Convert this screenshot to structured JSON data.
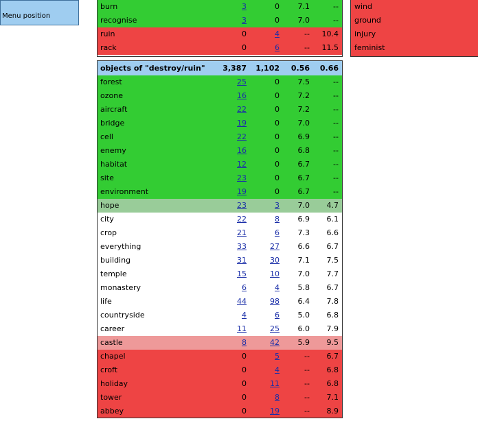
{
  "menu": {
    "label": "Menu position"
  },
  "top_rows": [
    {
      "word": "burn",
      "f1": "3",
      "f2": "0",
      "s1": "7.1",
      "s2": "--",
      "cls": "g",
      "f1_link": true,
      "f2_link": false
    },
    {
      "word": "recognise",
      "f1": "3",
      "f2": "0",
      "s1": "7.0",
      "s2": "--",
      "cls": "g",
      "f1_link": true,
      "f2_link": false
    },
    {
      "word": "ruin",
      "f1": "0",
      "f2": "4",
      "s1": "--",
      "s2": "10.4",
      "cls": "r",
      "f1_link": false,
      "f2_link": true
    },
    {
      "word": "rack",
      "f1": "0",
      "f2": "6",
      "s1": "--",
      "s2": "11.5",
      "cls": "r",
      "f1_link": false,
      "f2_link": true
    }
  ],
  "side_items": [
    "wind",
    "ground",
    "injury",
    "feminist"
  ],
  "main_header": {
    "title": "objects of \"destroy/ruin\"",
    "f1": "3,387",
    "f2": "1,102",
    "s1": "0.56",
    "s2": "0.66"
  },
  "main_rows": [
    {
      "word": "forest",
      "f1": "25",
      "f2": "0",
      "s1": "7.5",
      "s2": "--",
      "cls": "g",
      "f1_link": true,
      "f2_link": false
    },
    {
      "word": "ozone",
      "f1": "16",
      "f2": "0",
      "s1": "7.2",
      "s2": "--",
      "cls": "g",
      "f1_link": true,
      "f2_link": false
    },
    {
      "word": "aircraft",
      "f1": "22",
      "f2": "0",
      "s1": "7.2",
      "s2": "--",
      "cls": "g",
      "f1_link": true,
      "f2_link": false
    },
    {
      "word": "bridge",
      "f1": "19",
      "f2": "0",
      "s1": "7.0",
      "s2": "--",
      "cls": "g",
      "f1_link": true,
      "f2_link": false
    },
    {
      "word": "cell",
      "f1": "22",
      "f2": "0",
      "s1": "6.9",
      "s2": "--",
      "cls": "g",
      "f1_link": true,
      "f2_link": false
    },
    {
      "word": "enemy",
      "f1": "16",
      "f2": "0",
      "s1": "6.8",
      "s2": "--",
      "cls": "g",
      "f1_link": true,
      "f2_link": false
    },
    {
      "word": "habitat",
      "f1": "12",
      "f2": "0",
      "s1": "6.7",
      "s2": "--",
      "cls": "g",
      "f1_link": true,
      "f2_link": false
    },
    {
      "word": "site",
      "f1": "23",
      "f2": "0",
      "s1": "6.7",
      "s2": "--",
      "cls": "g",
      "f1_link": true,
      "f2_link": false
    },
    {
      "word": "environment",
      "f1": "19",
      "f2": "0",
      "s1": "6.7",
      "s2": "--",
      "cls": "g",
      "f1_link": true,
      "f2_link": false
    },
    {
      "word": "hope",
      "f1": "23",
      "f2": "3",
      "s1": "7.0",
      "s2": "4.7",
      "cls": "lg",
      "f1_link": true,
      "f2_link": true
    },
    {
      "word": "city",
      "f1": "22",
      "f2": "8",
      "s1": "6.9",
      "s2": "6.1",
      "cls": "w",
      "f1_link": true,
      "f2_link": true
    },
    {
      "word": "crop",
      "f1": "21",
      "f2": "6",
      "s1": "7.3",
      "s2": "6.6",
      "cls": "w",
      "f1_link": true,
      "f2_link": true
    },
    {
      "word": "everything",
      "f1": "33",
      "f2": "27",
      "s1": "6.6",
      "s2": "6.7",
      "cls": "w",
      "f1_link": true,
      "f2_link": true
    },
    {
      "word": "building",
      "f1": "31",
      "f2": "30",
      "s1": "7.1",
      "s2": "7.5",
      "cls": "w",
      "f1_link": true,
      "f2_link": true
    },
    {
      "word": "temple",
      "f1": "15",
      "f2": "10",
      "s1": "7.0",
      "s2": "7.7",
      "cls": "w",
      "f1_link": true,
      "f2_link": true
    },
    {
      "word": "monastery",
      "f1": "6",
      "f2": "4",
      "s1": "5.8",
      "s2": "6.7",
      "cls": "w",
      "f1_link": true,
      "f2_link": true
    },
    {
      "word": "life",
      "f1": "44",
      "f2": "98",
      "s1": "6.4",
      "s2": "7.8",
      "cls": "w",
      "f1_link": true,
      "f2_link": true
    },
    {
      "word": "countryside",
      "f1": "4",
      "f2": "6",
      "s1": "5.0",
      "s2": "6.8",
      "cls": "w",
      "f1_link": true,
      "f2_link": true
    },
    {
      "word": "career",
      "f1": "11",
      "f2": "25",
      "s1": "6.0",
      "s2": "7.9",
      "cls": "w",
      "f1_link": true,
      "f2_link": true
    },
    {
      "word": "castle",
      "f1": "8",
      "f2": "42",
      "s1": "5.9",
      "s2": "9.5",
      "cls": "pk",
      "f1_link": true,
      "f2_link": true
    },
    {
      "word": "chapel",
      "f1": "0",
      "f2": "5",
      "s1": "--",
      "s2": "6.7",
      "cls": "r",
      "f1_link": false,
      "f2_link": true
    },
    {
      "word": "croft",
      "f1": "0",
      "f2": "4",
      "s1": "--",
      "s2": "6.8",
      "cls": "r",
      "f1_link": false,
      "f2_link": true
    },
    {
      "word": "holiday",
      "f1": "0",
      "f2": "11",
      "s1": "--",
      "s2": "6.8",
      "cls": "r",
      "f1_link": false,
      "f2_link": true
    },
    {
      "word": "tower",
      "f1": "0",
      "f2": "8",
      "s1": "--",
      "s2": "7.1",
      "cls": "r",
      "f1_link": false,
      "f2_link": true
    },
    {
      "word": "abbey",
      "f1": "0",
      "f2": "19",
      "s1": "--",
      "s2": "8.9",
      "cls": "r",
      "f1_link": false,
      "f2_link": true
    }
  ]
}
